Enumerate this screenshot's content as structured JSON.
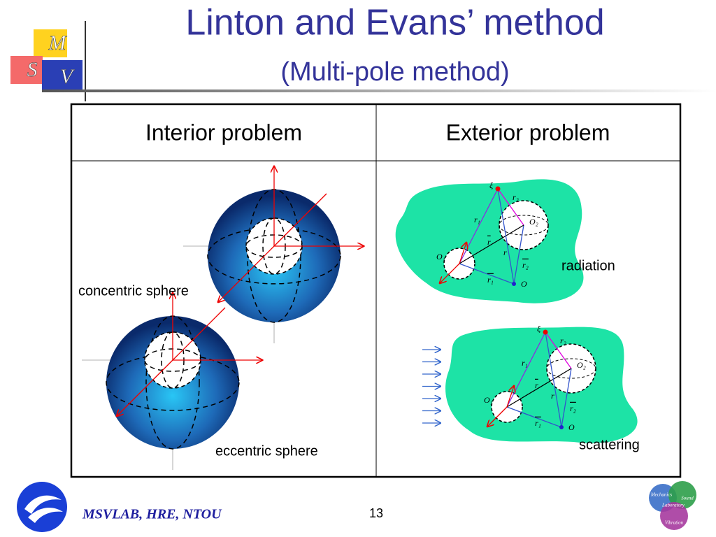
{
  "logo": {
    "letters": [
      "M",
      "S",
      "V"
    ]
  },
  "header": {
    "title": "Linton and Evans’ method",
    "subtitle": "(Multi-pole method)"
  },
  "table": {
    "headers": [
      "Interior problem",
      "Exterior problem"
    ],
    "interior": {
      "labels": [
        "concentric sphere",
        "eccentric sphere"
      ]
    },
    "exterior": {
      "radiation": {
        "label": "radiation",
        "symbols": [
          "ξ",
          "r₂",
          "r₁",
          "O₂",
          "r",
          "r",
          "O₁",
          "r₂",
          "r₁",
          "O"
        ]
      },
      "scattering": {
        "label": "scattering",
        "symbols": [
          "ξ",
          "r₂",
          "r₁",
          "O₂",
          "r",
          "r",
          "O₁",
          "r₂",
          "r₁",
          "O"
        ]
      }
    }
  },
  "footer": {
    "lab": "MSVLAB, HRE, NTOU",
    "page": "13",
    "badge": [
      "Mechanics",
      "Sound",
      "Laboratory",
      "Vibration"
    ]
  }
}
